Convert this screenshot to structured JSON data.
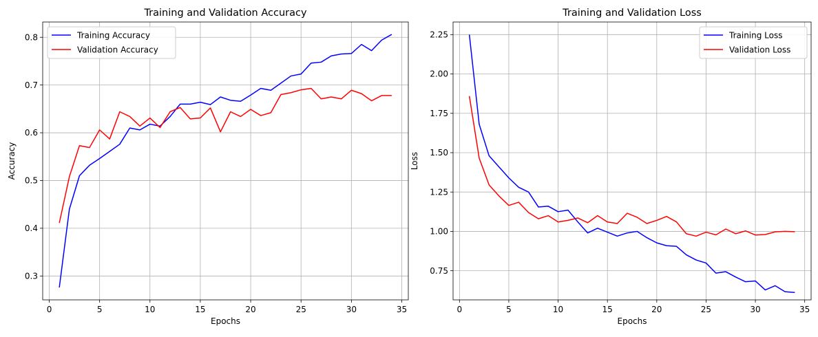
{
  "chart_data": [
    {
      "type": "line",
      "title": "Training and Validation Accuracy",
      "xlabel": "Epochs",
      "ylabel": "Accuracy",
      "xlim": [
        -0.65,
        35.65
      ],
      "ylim": [
        0.25,
        0.832
      ],
      "xticks": [
        0,
        5,
        10,
        15,
        20,
        25,
        30,
        35
      ],
      "yticks": [
        0.3,
        0.4,
        0.5,
        0.6,
        0.7,
        0.8
      ],
      "ytick_decimals": 1,
      "grid": true,
      "legend_position": "top-left",
      "x": [
        1,
        2,
        3,
        4,
        5,
        6,
        7,
        8,
        9,
        10,
        11,
        12,
        13,
        14,
        15,
        16,
        17,
        18,
        19,
        20,
        21,
        22,
        23,
        24,
        25,
        26,
        27,
        28,
        29,
        30,
        31,
        32,
        33,
        34
      ],
      "series": [
        {
          "name": "Training Accuracy",
          "color": "#0000ff",
          "values": [
            0.276,
            0.44,
            0.51,
            0.532,
            0.546,
            0.561,
            0.576,
            0.61,
            0.606,
            0.618,
            0.614,
            0.634,
            0.66,
            0.66,
            0.664,
            0.659,
            0.675,
            0.668,
            0.666,
            0.679,
            0.693,
            0.689,
            0.704,
            0.719,
            0.723,
            0.746,
            0.748,
            0.761,
            0.765,
            0.766,
            0.785,
            0.772,
            0.794,
            0.806
          ]
        },
        {
          "name": "Validation Accuracy",
          "color": "#ff0000",
          "values": [
            0.411,
            0.508,
            0.573,
            0.569,
            0.606,
            0.587,
            0.644,
            0.634,
            0.614,
            0.631,
            0.611,
            0.644,
            0.653,
            0.629,
            0.631,
            0.652,
            0.602,
            0.644,
            0.634,
            0.649,
            0.636,
            0.642,
            0.68,
            0.684,
            0.69,
            0.693,
            0.671,
            0.675,
            0.671,
            0.689,
            0.682,
            0.667,
            0.678,
            0.678
          ]
        }
      ]
    },
    {
      "type": "line",
      "title": "Training and Validation Loss",
      "xlabel": "Epochs",
      "ylabel": "Loss",
      "xlim": [
        -0.65,
        35.65
      ],
      "ylim": [
        0.565,
        2.33
      ],
      "xticks": [
        0,
        5,
        10,
        15,
        20,
        25,
        30,
        35
      ],
      "yticks": [
        0.75,
        1.0,
        1.25,
        1.5,
        1.75,
        2.0,
        2.25
      ],
      "ytick_decimals": 2,
      "grid": true,
      "legend_position": "top-right",
      "x": [
        1,
        2,
        3,
        4,
        5,
        6,
        7,
        8,
        9,
        10,
        11,
        12,
        13,
        14,
        15,
        16,
        17,
        18,
        19,
        20,
        21,
        22,
        23,
        24,
        25,
        26,
        27,
        28,
        29,
        30,
        31,
        32,
        33,
        34
      ],
      "series": [
        {
          "name": "Training Loss",
          "color": "#0000ff",
          "values": [
            2.25,
            1.68,
            1.48,
            1.41,
            1.34,
            1.28,
            1.25,
            1.155,
            1.16,
            1.125,
            1.135,
            1.06,
            0.99,
            1.02,
            0.995,
            0.97,
            0.99,
            1.0,
            0.96,
            0.927,
            0.909,
            0.905,
            0.851,
            0.818,
            0.799,
            0.735,
            0.744,
            0.71,
            0.68,
            0.685,
            0.628,
            0.655,
            0.617,
            0.612
          ]
        },
        {
          "name": "Validation Loss",
          "color": "#ff0000",
          "values": [
            1.86,
            1.465,
            1.295,
            1.225,
            1.165,
            1.185,
            1.12,
            1.08,
            1.1,
            1.06,
            1.07,
            1.085,
            1.055,
            1.1,
            1.06,
            1.05,
            1.115,
            1.09,
            1.05,
            1.07,
            1.095,
            1.06,
            0.985,
            0.97,
            0.995,
            0.978,
            1.015,
            0.985,
            1.003,
            0.977,
            0.98,
            0.997,
            1.0,
            0.998
          ]
        }
      ]
    }
  ]
}
